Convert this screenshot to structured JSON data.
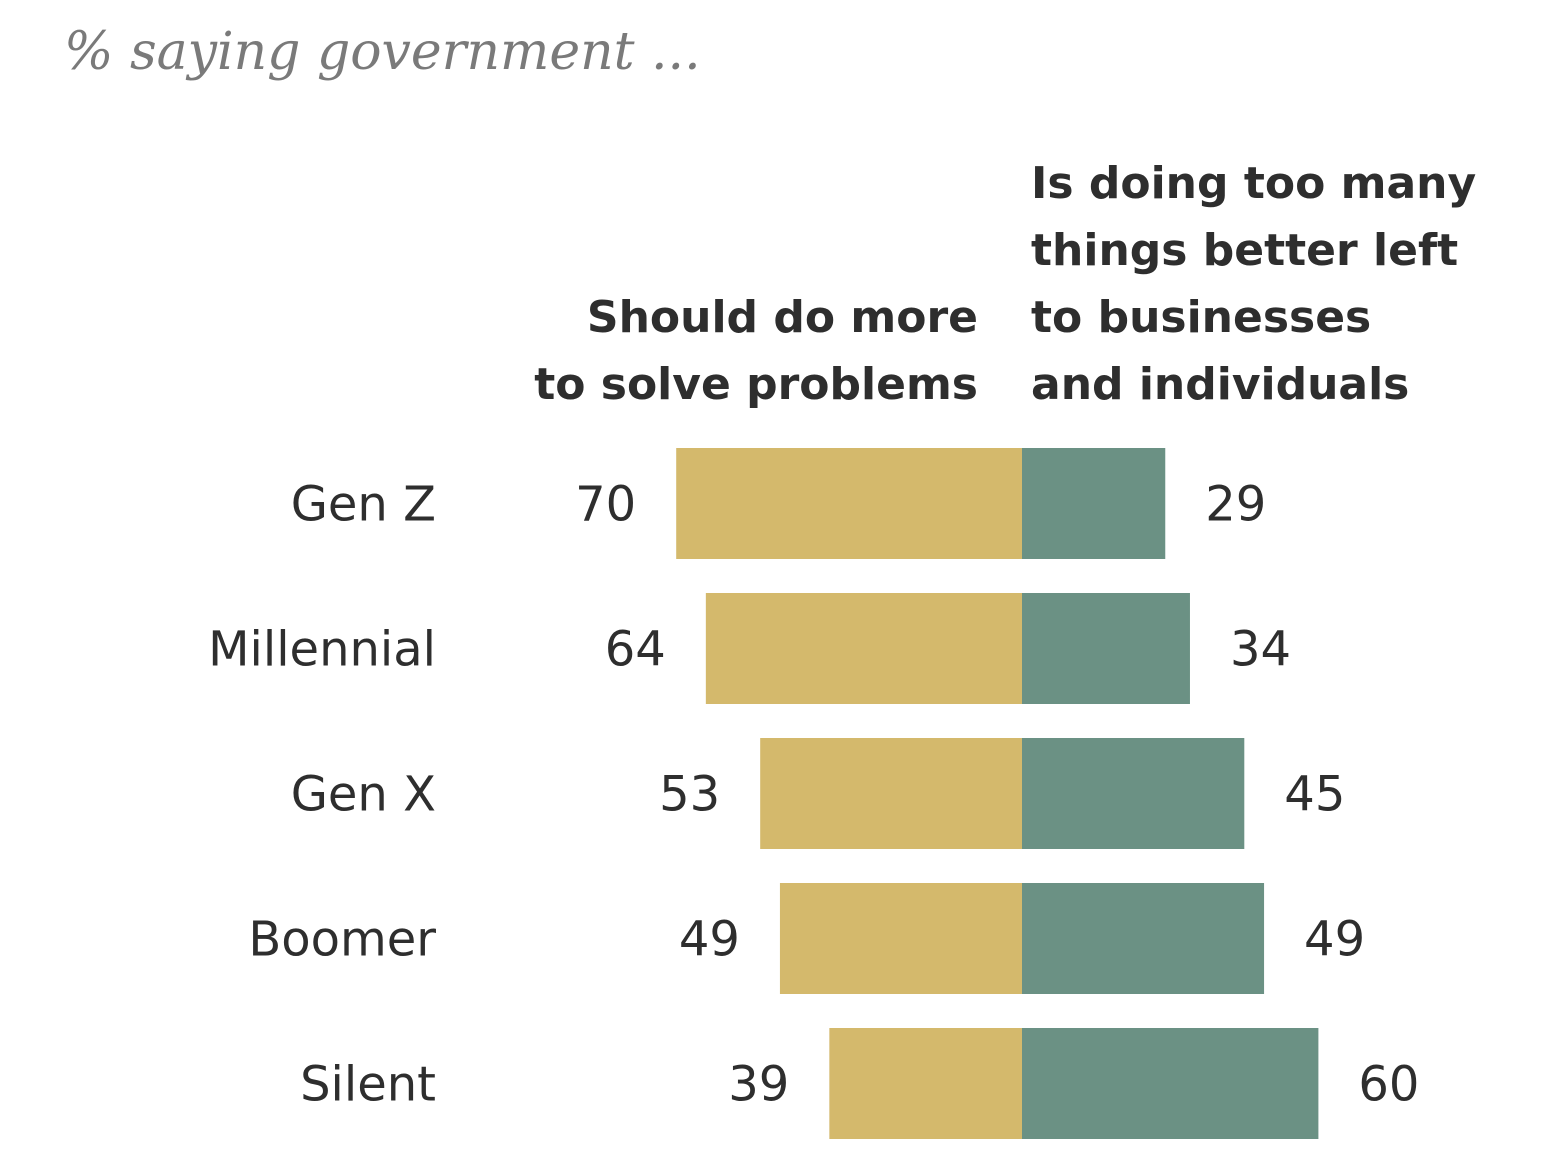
{
  "chart_data": {
    "type": "bar",
    "orientation": "horizontal-diverging",
    "subtitle": "% saying government ...",
    "categories": [
      "Gen Z",
      "Millennial",
      "Gen X",
      "Boomer",
      "Silent"
    ],
    "series": [
      {
        "name_lines": [
          "Should do more",
          "to solve problems"
        ],
        "color": "#d4b96c",
        "direction": "left",
        "values": [
          70,
          64,
          53,
          49,
          39
        ]
      },
      {
        "name_lines": [
          "Is doing too many",
          "things better left",
          "to businesses",
          "and individuals"
        ],
        "color": "#6b9184",
        "direction": "right",
        "values": [
          29,
          34,
          45,
          49,
          60
        ]
      }
    ]
  }
}
